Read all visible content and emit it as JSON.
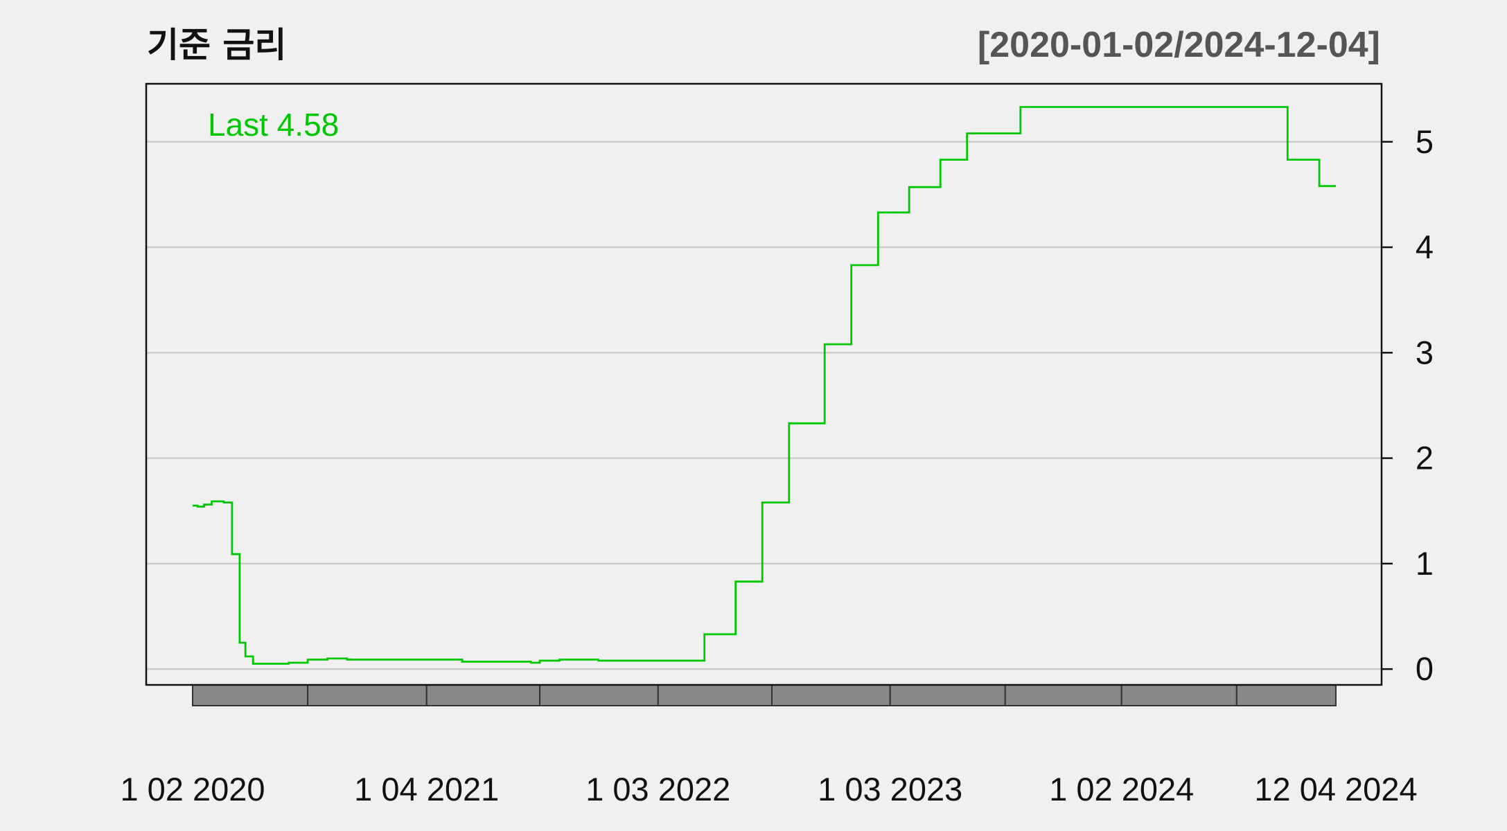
{
  "chart_data": {
    "type": "line",
    "title": "기준 금리",
    "date_range": "[2020-01-02/2024-12-04]",
    "last_label": "Last 4.58",
    "ylim": [
      -0.15,
      5.55
    ],
    "y_ticks": [
      0,
      1,
      2,
      3,
      4,
      5
    ],
    "x_range": [
      "2020-01-02",
      "2024-12-04"
    ],
    "x_tick_labels": [
      {
        "date": "2020-01-02",
        "label": "1 02 2020"
      },
      {
        "date": "2021-01-04",
        "label": "1 04 2021"
      },
      {
        "date": "2022-01-03",
        "label": "1 03 2022"
      },
      {
        "date": "2023-01-03",
        "label": "1 03 2023"
      },
      {
        "date": "2024-01-02",
        "label": "1 02 2024"
      },
      {
        "date": "2024-12-04",
        "label": "12 04 2024"
      }
    ],
    "x_band_dates": [
      "2020-01-02",
      "2020-07-01",
      "2021-01-04",
      "2021-07-01",
      "2022-01-03",
      "2022-07-01",
      "2023-01-03",
      "2023-07-03",
      "2024-01-02",
      "2024-07-01",
      "2024-12-04"
    ],
    "grid": true,
    "series": [
      {
        "color": "#00c800",
        "step": true,
        "points": [
          [
            "2020-01-02",
            1.55
          ],
          [
            "2020-01-10",
            1.54
          ],
          [
            "2020-01-20",
            1.56
          ],
          [
            "2020-02-01",
            1.59
          ],
          [
            "2020-02-20",
            1.58
          ],
          [
            "2020-03-04",
            1.09
          ],
          [
            "2020-03-16",
            0.25
          ],
          [
            "2020-03-25",
            0.12
          ],
          [
            "2020-04-06",
            0.05
          ],
          [
            "2020-05-01",
            0.05
          ],
          [
            "2020-06-01",
            0.06
          ],
          [
            "2020-07-01",
            0.09
          ],
          [
            "2020-08-01",
            0.1
          ],
          [
            "2020-09-01",
            0.09
          ],
          [
            "2020-10-01",
            0.09
          ],
          [
            "2021-01-04",
            0.09
          ],
          [
            "2021-03-01",
            0.07
          ],
          [
            "2021-06-17",
            0.06
          ],
          [
            "2021-07-01",
            0.08
          ],
          [
            "2021-08-01",
            0.09
          ],
          [
            "2021-10-01",
            0.08
          ],
          [
            "2022-03-17",
            0.33
          ],
          [
            "2022-05-05",
            0.83
          ],
          [
            "2022-06-16",
            1.58
          ],
          [
            "2022-07-28",
            2.33
          ],
          [
            "2022-09-22",
            3.08
          ],
          [
            "2022-11-03",
            3.83
          ],
          [
            "2022-12-15",
            4.33
          ],
          [
            "2023-02-02",
            4.57
          ],
          [
            "2023-03-23",
            4.83
          ],
          [
            "2023-05-04",
            5.08
          ],
          [
            "2023-07-27",
            5.33
          ],
          [
            "2024-09-19",
            4.83
          ],
          [
            "2024-11-08",
            4.58
          ],
          [
            "2024-12-04",
            4.58
          ]
        ]
      }
    ]
  }
}
